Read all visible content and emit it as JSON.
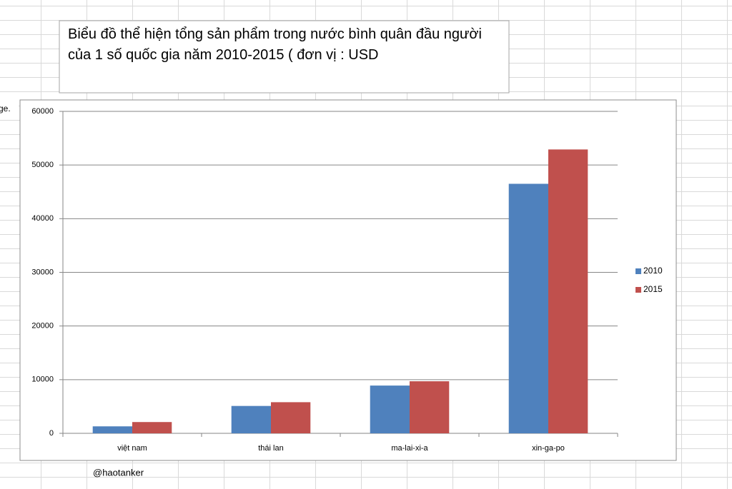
{
  "chart_data": {
    "type": "bar",
    "title": "Biểu đồ thể hiện tổng sản phẩm trong nước bình quân đầu người của 1 số quốc gia năm 2010-2015 ( đơn vị : USD",
    "categories": [
      "việt nam",
      "thái lan",
      "ma-lai-xi-a",
      "xin-ga-po"
    ],
    "series": [
      {
        "name": "2010",
        "color": "#4f81bd",
        "values": [
          1300,
          5100,
          8900,
          46500
        ]
      },
      {
        "name": "2015",
        "color": "#c0504d",
        "values": [
          2100,
          5800,
          9700,
          52900
        ]
      }
    ],
    "ylim": [
      0,
      60000
    ],
    "yticks": [
      0,
      10000,
      20000,
      30000,
      40000,
      50000,
      60000
    ],
    "grid": true,
    "legend": "right"
  },
  "cell_text": "ge.",
  "footer": "@haotanker"
}
